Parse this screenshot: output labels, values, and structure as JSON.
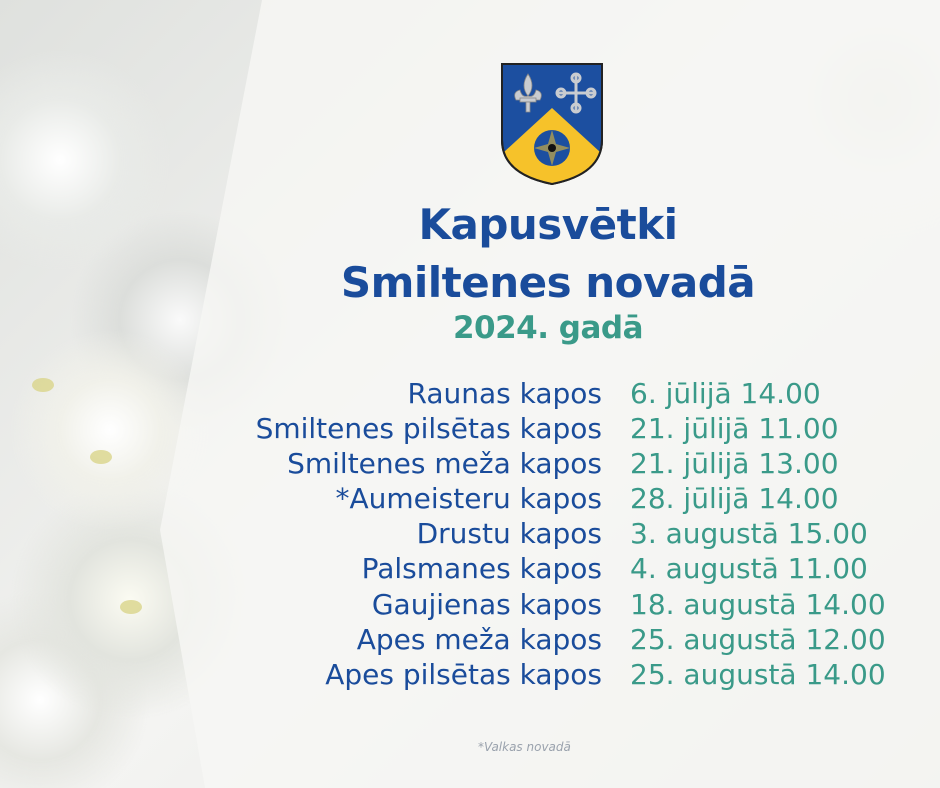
{
  "title_line1": "Kapusvētki",
  "title_line2": "Smiltenes novadā",
  "year": "2024. gadā",
  "crest_icon": "coat-of-arms-smiltene",
  "colors": {
    "blue": "#1a4c9b",
    "teal": "#3a9a89",
    "yellow": "#f6c22a"
  },
  "schedule": [
    {
      "place": "Raunas kapos",
      "date": "6. jūlijā 14.00"
    },
    {
      "place": "Smiltenes pilsētas kapos",
      "date": "21. jūlijā 11.00"
    },
    {
      "place": "Smiltenes meža kapos",
      "date": "21. jūlijā 13.00"
    },
    {
      "place": "*Aumeisteru kapos",
      "date": "28. jūlijā 14.00"
    },
    {
      "place": "Drustu kapos",
      "date": "3. augustā 15.00"
    },
    {
      "place": "Palsmanes kapos",
      "date": "4. augustā 11.00"
    },
    {
      "place": "Gaujienas kapos",
      "date": "18. augustā 14.00"
    },
    {
      "place": "Apes meža kapos",
      "date": "25. augustā 12.00"
    },
    {
      "place": "Apes pilsētas kapos",
      "date": "25. augustā 14.00"
    }
  ],
  "footnote": "*Valkas novadā"
}
